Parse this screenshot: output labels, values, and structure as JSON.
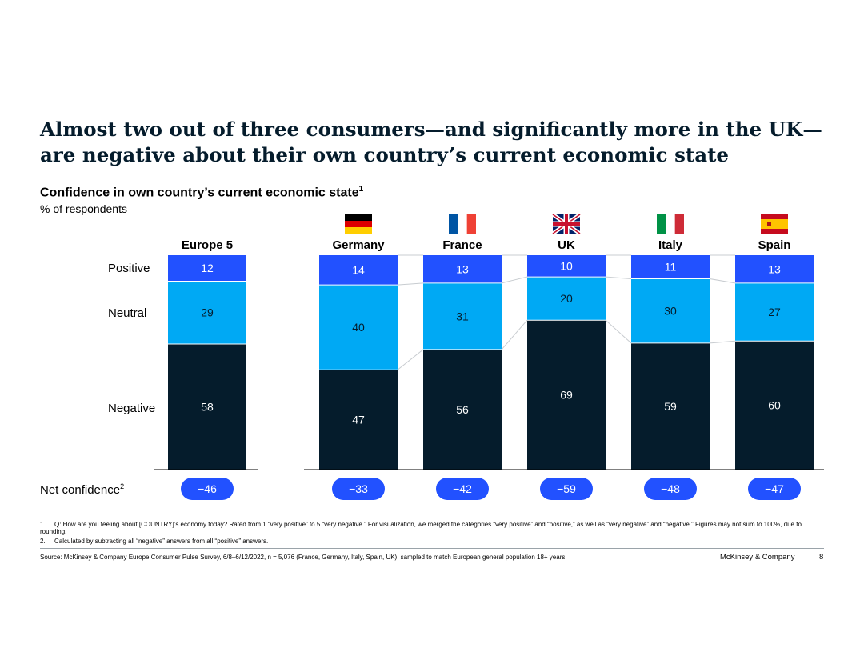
{
  "title": "Almost two out of three consumers—and significantly more in the UK—are negative about their own country’s current economic state",
  "subtitle": "Confidence in own country’s current economic state",
  "subtitle_sup": "1",
  "units": "% of respondents",
  "row_labels": {
    "positive": "Positive",
    "neutral": "Neutral",
    "negative": "Negative"
  },
  "net_label": "Net confidence",
  "net_label_sup": "2",
  "colors": {
    "positive": "#2251ff",
    "neutral": "#00a9f4",
    "negative": "#051c2c",
    "pill": "#2251ff",
    "connector": "#c8ccd0",
    "axis": "#000000"
  },
  "chart_data": {
    "type": "bar",
    "stacked": true,
    "categories": [
      "Europe 5",
      "Germany",
      "France",
      "UK",
      "Italy",
      "Spain"
    ],
    "flags": [
      "",
      "germany-flag",
      "france-flag",
      "uk-flag",
      "italy-flag",
      "spain-flag"
    ],
    "series": [
      {
        "name": "Negative",
        "values": [
          58,
          47,
          56,
          69,
          59,
          60
        ]
      },
      {
        "name": "Neutral",
        "values": [
          29,
          40,
          31,
          20,
          30,
          27
        ]
      },
      {
        "name": "Positive",
        "values": [
          12,
          14,
          13,
          10,
          11,
          13
        ]
      }
    ],
    "net_confidence": [
      "−46",
      "−33",
      "−42",
      "−59",
      "−48",
      "−47"
    ],
    "ylim": [
      0,
      100
    ],
    "unit": "% of respondents"
  },
  "footnotes": [
    {
      "num": "1.",
      "text": "Q: How are you feeling about [COUNTRY]’s economy today? Rated from 1 “very positive” to 5 “very negative.” For visualization, we merged the categories “very positive” and “positive,” as well as “very negative” and “negative.” Figures may not sum to 100%, due to rounding."
    },
    {
      "num": "2.",
      "text": "Calculated by subtracting all “negative” answers from all “positive” answers."
    }
  ],
  "source": "Source: McKinsey & Company Europe Consumer Pulse Survey, 6/8–6/12/2022, n = 5,076 (France, Germany, Italy, Spain, UK), sampled to match European general population 18+ years",
  "brand": "McKinsey & Company",
  "page_number": "8"
}
